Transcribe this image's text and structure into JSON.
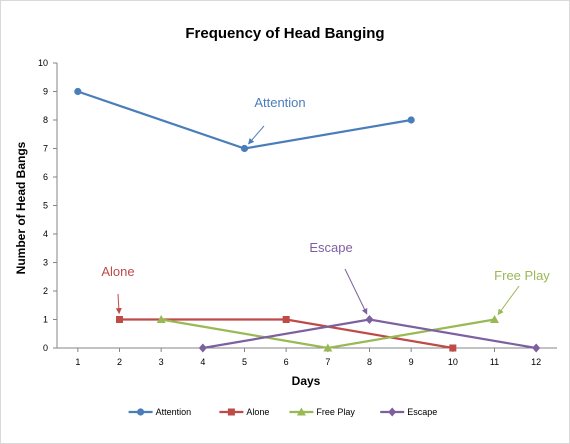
{
  "chart_data": {
    "type": "line",
    "title": "Frequency of Head Banging",
    "xlabel": "Days",
    "ylabel": "Number of Head Bangs",
    "x": [
      1,
      2,
      3,
      4,
      5,
      6,
      7,
      8,
      9,
      10,
      11,
      12
    ],
    "xlim": [
      1,
      12
    ],
    "ylim": [
      0,
      10
    ],
    "yticks": [
      0,
      1,
      2,
      3,
      4,
      5,
      6,
      7,
      8,
      9,
      10
    ],
    "grid": false,
    "legend_position": "bottom",
    "series": [
      {
        "name": "Attention",
        "color": "#4a7ebb",
        "marker": "circle",
        "points": [
          [
            1,
            9
          ],
          [
            5,
            7
          ],
          [
            9,
            8
          ]
        ]
      },
      {
        "name": "Alone",
        "color": "#be4b48",
        "marker": "square",
        "points": [
          [
            2,
            1
          ],
          [
            6,
            1
          ],
          [
            10,
            0
          ]
        ]
      },
      {
        "name": "Free Play",
        "color": "#98b954",
        "marker": "triangle",
        "points": [
          [
            3,
            1
          ],
          [
            7,
            0
          ],
          [
            11,
            1
          ]
        ]
      },
      {
        "name": "Escape",
        "color": "#7d60a0",
        "marker": "diamond",
        "points": [
          [
            4,
            0
          ],
          [
            8,
            1
          ],
          [
            12,
            0
          ]
        ]
      }
    ],
    "annotations": [
      {
        "text": "Attention",
        "series": "Attention",
        "x": 5,
        "y": 7,
        "color": "#4a7ebb"
      },
      {
        "text": "Alone",
        "series": "Alone",
        "x": 2,
        "y": 1,
        "color": "#be4b48"
      },
      {
        "text": "Escape",
        "series": "Escape",
        "x": 8,
        "y": 1,
        "color": "#7d60a0"
      },
      {
        "text": "Free Play",
        "series": "Free Play",
        "x": 11,
        "y": 1,
        "color": "#98b954"
      }
    ]
  }
}
